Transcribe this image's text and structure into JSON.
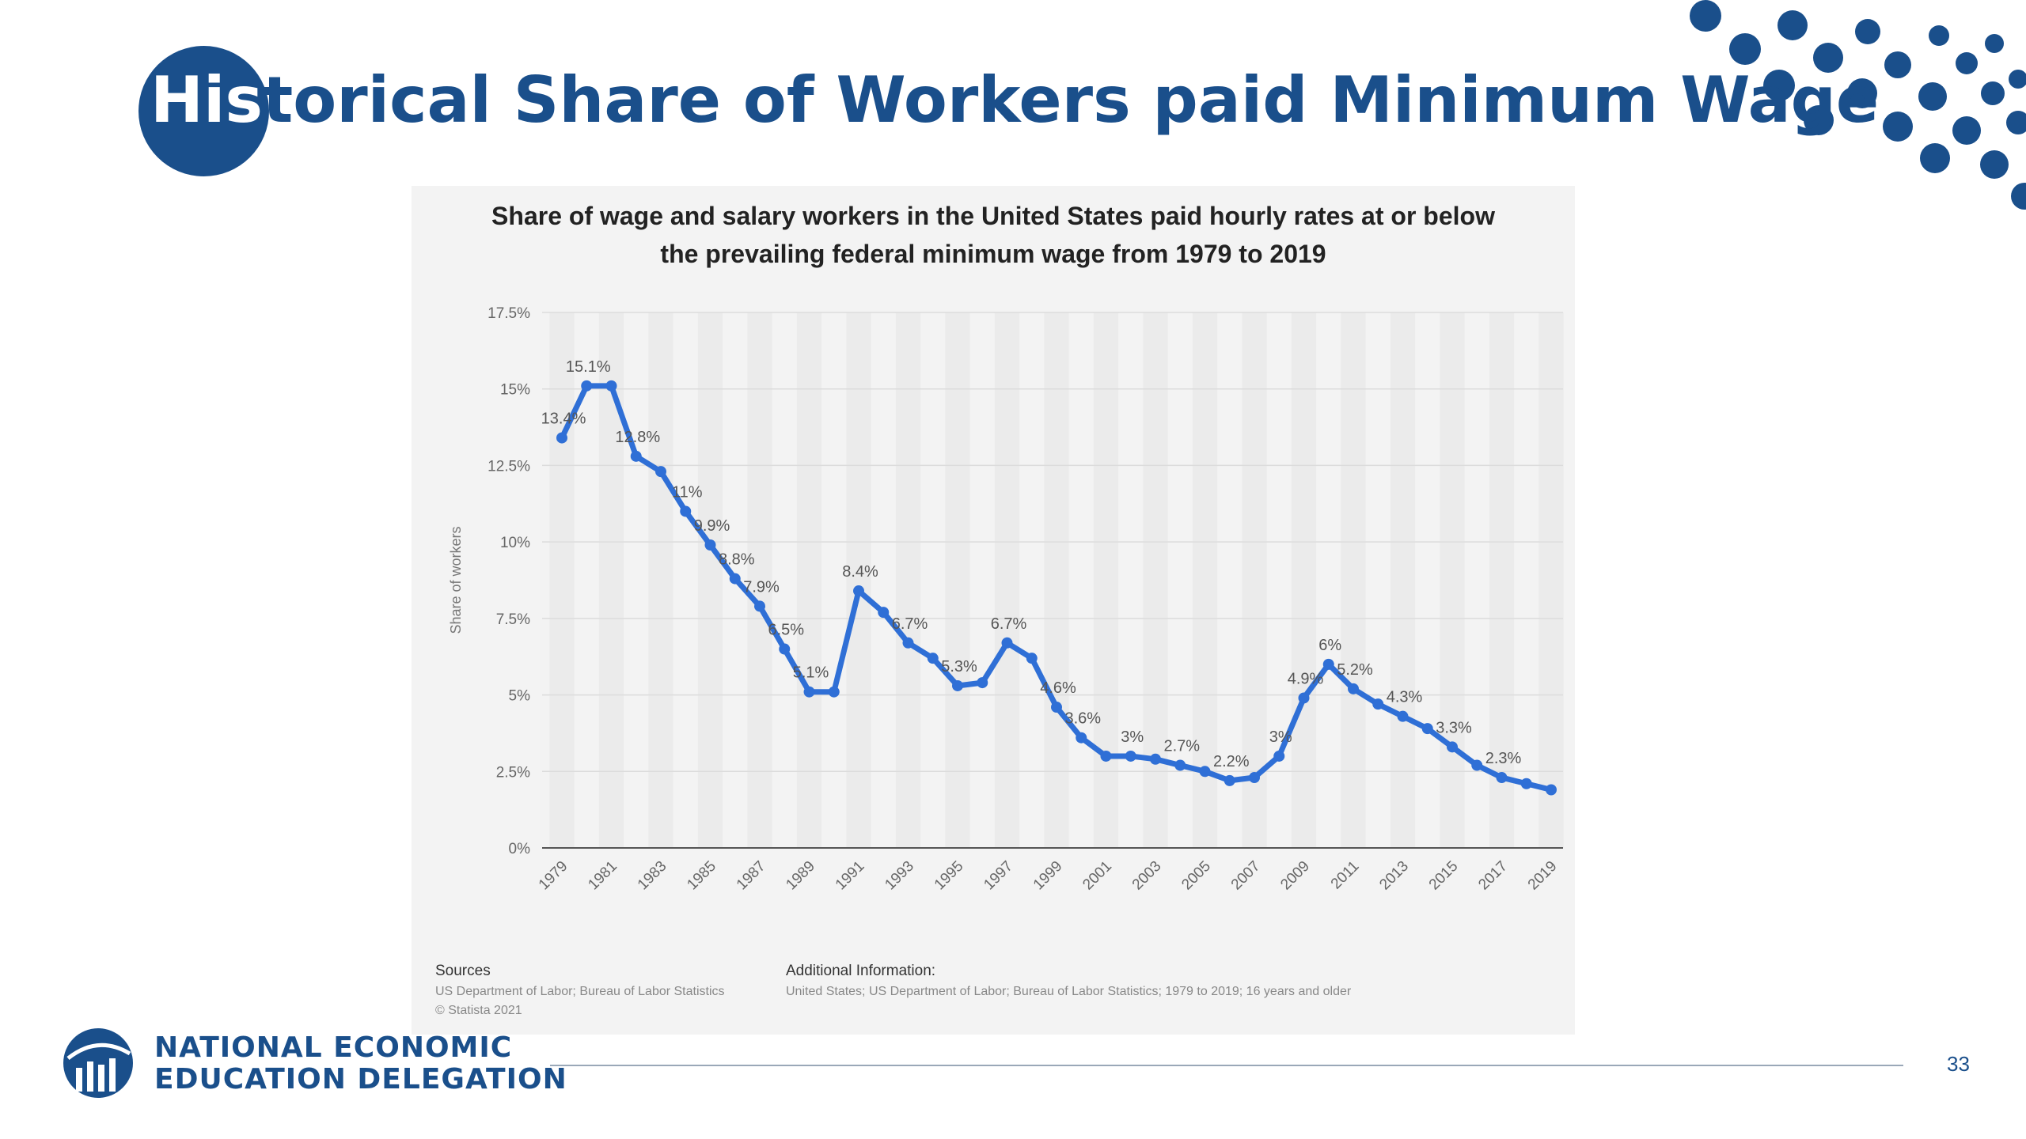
{
  "slide": {
    "title_part_inverse": "His",
    "title_part_rest": "torical Share of Workers paid Minimum Wage",
    "page_number": "33",
    "accent_color": "#1a4f8b"
  },
  "logo": {
    "line1": "NATIONAL ECONOMIC",
    "line2": "EDUCATION DELEGATION"
  },
  "chart_footer": {
    "sources_heading": "Sources",
    "sources_text": "US Department of Labor; Bureau of Labor Statistics",
    "copyright": "© Statista 2021",
    "additional_heading": "Additional Information:",
    "additional_text": "United States; US Department of Labor; Bureau of Labor Statistics; 1979 to 2019; 16 years and older"
  },
  "chart_data": {
    "type": "line",
    "title_line1": "Share of wage and salary workers in the United States paid hourly rates at or below",
    "title_line2": "the prevailing federal minimum wage from 1979 to 2019",
    "ylabel": "Share of workers",
    "xlabel": "",
    "ylim": [
      0,
      17.5
    ],
    "y_ticks": [
      0,
      2.5,
      5,
      7.5,
      10,
      12.5,
      15,
      17.5
    ],
    "y_tick_labels": [
      "0%",
      "2.5%",
      "5%",
      "7.5%",
      "10%",
      "12.5%",
      "15%",
      "17.5%"
    ],
    "x_tick_labels": [
      "1979",
      "1981",
      "1983",
      "1985",
      "1987",
      "1989",
      "1991",
      "1993",
      "1995",
      "1997",
      "1999",
      "2001",
      "2003",
      "2005",
      "2007",
      "2009",
      "2011",
      "2013",
      "2015",
      "2017",
      "2019"
    ],
    "grid": true,
    "line_color": "#2f6fd6",
    "series": [
      {
        "x": [
          1979,
          1980,
          1981,
          1982,
          1983,
          1984,
          1985,
          1986,
          1987,
          1988,
          1989,
          1990,
          1991,
          1992,
          1993,
          1994,
          1995,
          1996,
          1997,
          1998,
          1999,
          2000,
          2001,
          2002,
          2003,
          2004,
          2005,
          2006,
          2007,
          2008,
          2009,
          2010,
          2011,
          2012,
          2013,
          2014,
          2015,
          2016,
          2017,
          2018,
          2019
        ],
        "y": [
          13.4,
          15.1,
          15.1,
          12.8,
          12.3,
          11,
          9.9,
          8.8,
          7.9,
          6.5,
          5.1,
          5.1,
          8.4,
          7.7,
          6.7,
          6.2,
          5.3,
          5.4,
          6.7,
          6.2,
          4.6,
          3.6,
          3.0,
          3.0,
          2.9,
          2.7,
          2.5,
          2.2,
          2.3,
          3.0,
          4.9,
          6.0,
          5.2,
          4.7,
          4.3,
          3.9,
          3.3,
          2.7,
          2.3,
          2.1,
          1.9
        ]
      }
    ],
    "data_labels": [
      {
        "x": 1979,
        "y": 13.4,
        "text": "13.4%"
      },
      {
        "x": 1980,
        "y": 15.1,
        "text": "15.1%"
      },
      {
        "x": 1982,
        "y": 12.8,
        "text": "12.8%"
      },
      {
        "x": 1984,
        "y": 11,
        "text": "11%"
      },
      {
        "x": 1985,
        "y": 9.9,
        "text": "9.9%"
      },
      {
        "x": 1986,
        "y": 8.8,
        "text": "8.8%"
      },
      {
        "x": 1987,
        "y": 7.9,
        "text": "7.9%"
      },
      {
        "x": 1988,
        "y": 6.5,
        "text": "6.5%"
      },
      {
        "x": 1989,
        "y": 5.1,
        "text": "5.1%"
      },
      {
        "x": 1991,
        "y": 8.4,
        "text": "8.4%"
      },
      {
        "x": 1993,
        "y": 6.7,
        "text": "6.7%"
      },
      {
        "x": 1995,
        "y": 5.3,
        "text": "5.3%"
      },
      {
        "x": 1997,
        "y": 6.7,
        "text": "6.7%"
      },
      {
        "x": 1999,
        "y": 4.6,
        "text": "4.6%"
      },
      {
        "x": 2000,
        "y": 3.6,
        "text": "3.6%"
      },
      {
        "x": 2002,
        "y": 3.0,
        "text": "3%"
      },
      {
        "x": 2004,
        "y": 2.7,
        "text": "2.7%"
      },
      {
        "x": 2006,
        "y": 2.2,
        "text": "2.2%"
      },
      {
        "x": 2008,
        "y": 3.0,
        "text": "3%"
      },
      {
        "x": 2009,
        "y": 4.9,
        "text": "4.9%"
      },
      {
        "x": 2010,
        "y": 6.0,
        "text": "6%"
      },
      {
        "x": 2011,
        "y": 5.2,
        "text": "5.2%"
      },
      {
        "x": 2013,
        "y": 4.3,
        "text": "4.3%"
      },
      {
        "x": 2015,
        "y": 3.3,
        "text": "3.3%"
      },
      {
        "x": 2017,
        "y": 2.3,
        "text": "2.3%"
      }
    ]
  }
}
